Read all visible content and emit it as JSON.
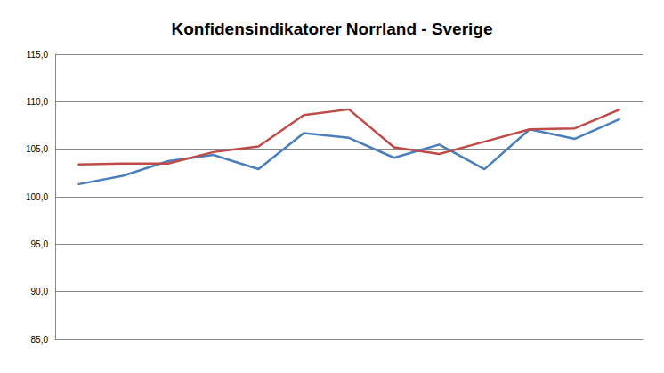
{
  "chart_data": {
    "type": "line",
    "title": "Konfidensindikatorer Norrland - Sverige",
    "categories": [
      null,
      null,
      null,
      null,
      null,
      null,
      null,
      null,
      null,
      null,
      null,
      null,
      null
    ],
    "series": [
      {
        "color": "#4a7ebb",
        "values": [
          101.3,
          102.2,
          103.75,
          104.4,
          102.9,
          106.7,
          106.2,
          104.1,
          105.5,
          102.9,
          107.1,
          106.1,
          108.2
        ]
      },
      {
        "color": "#be4b48",
        "values": [
          103.4,
          103.5,
          103.5,
          104.7,
          105.3,
          108.6,
          109.2,
          105.2,
          104.5,
          105.8,
          107.1,
          107.2,
          109.2
        ]
      }
    ],
    "ylim": [
      85,
      115
    ],
    "yticks": [
      {
        "value": 85,
        "label": "85,0"
      },
      {
        "value": 90,
        "label": "90,0"
      },
      {
        "value": 95,
        "label": "95,0"
      },
      {
        "value": 100,
        "label": "100,0"
      },
      {
        "value": 105,
        "label": "105,0"
      },
      {
        "value": 110,
        "label": "110,0"
      },
      {
        "value": 115,
        "label": "115,0"
      }
    ],
    "grid": true,
    "tick_labels": "y"
  }
}
